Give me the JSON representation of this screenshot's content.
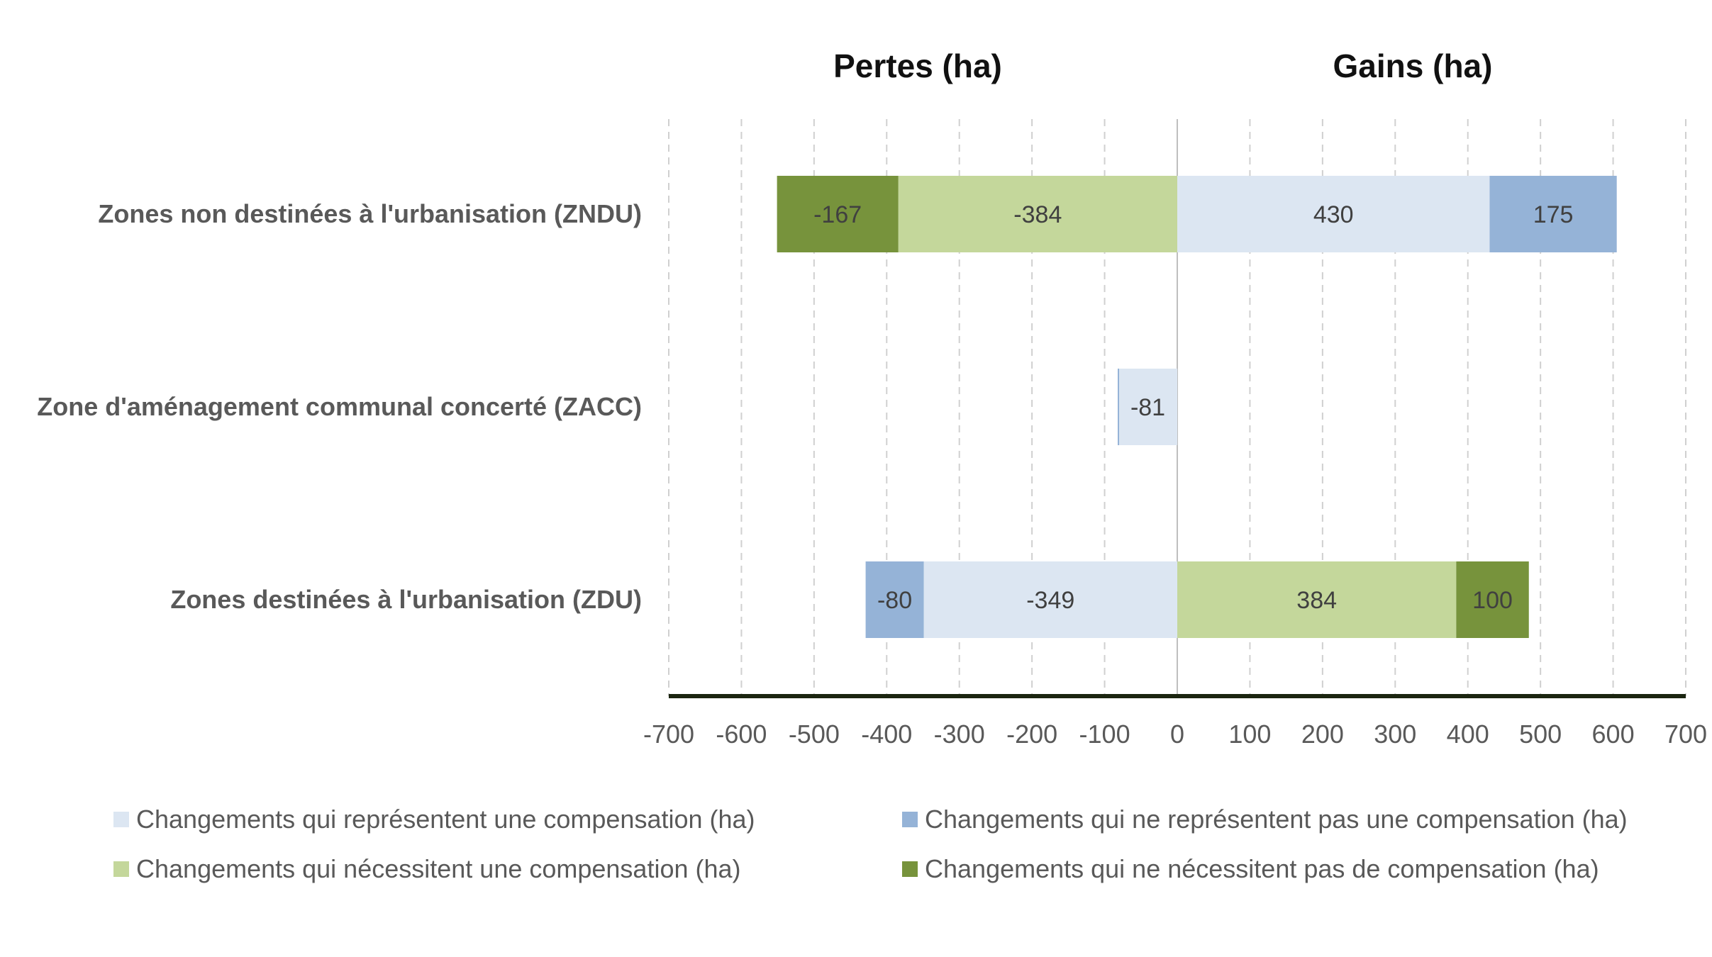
{
  "titles": {
    "losses": "Pertes (ha)",
    "gains": "Gains (ha)"
  },
  "colors": {
    "compensation": "#dce6f2",
    "no_compensation": "#95b3d7",
    "requires_compensation": "#c4d79b",
    "no_requires_compensation": "#77933c",
    "axis_line": "#1b2510",
    "grid": "#d0d0d0"
  },
  "legend": [
    {
      "label": "Changements qui représentent une compensation (ha)",
      "color": "#dce6f2"
    },
    {
      "label": "Changements qui ne représentent pas une compensation (ha)",
      "color": "#95b3d7"
    },
    {
      "label": "Changements qui nécessitent une compensation (ha)",
      "color": "#c4d79b"
    },
    {
      "label": "Changements qui ne nécessitent pas de compensation (ha)",
      "color": "#77933c"
    }
  ],
  "chart_data": {
    "type": "bar",
    "orientation": "horizontal",
    "stacked": true,
    "categories": [
      "Zones non destinées à l'urbanisation (ZNDU)",
      "Zone d'aménagement communal concerté (ZACC)",
      "Zones destinées à l'urbanisation (ZDU)"
    ],
    "series": [
      {
        "name": "Changements qui représentent une compensation (ha)",
        "color": "#dce6f2",
        "values": [
          430,
          -81,
          -349
        ]
      },
      {
        "name": "Changements qui ne représentent pas une compensation (ha)",
        "color": "#95b3d7",
        "values": [
          175,
          -1,
          -80
        ]
      },
      {
        "name": "Changements qui nécessitent une compensation (ha)",
        "color": "#c4d79b",
        "values": [
          -384,
          0,
          384
        ]
      },
      {
        "name": "Changements qui ne nécessitent pas de compensation (ha)",
        "color": "#77933c",
        "values": [
          -167,
          0,
          100
        ]
      }
    ],
    "data_labels": [
      [
        "-167",
        "-384",
        "430",
        "175"
      ],
      [
        "-81"
      ],
      [
        "-80",
        "-349",
        "384",
        "100"
      ]
    ],
    "xlim": [
      -700,
      700
    ],
    "xticks": [
      -700,
      -600,
      -500,
      -400,
      -300,
      -200,
      -100,
      0,
      100,
      200,
      300,
      400,
      500,
      600,
      700
    ],
    "grid": "vertical dashed",
    "legend_position": "bottom"
  }
}
